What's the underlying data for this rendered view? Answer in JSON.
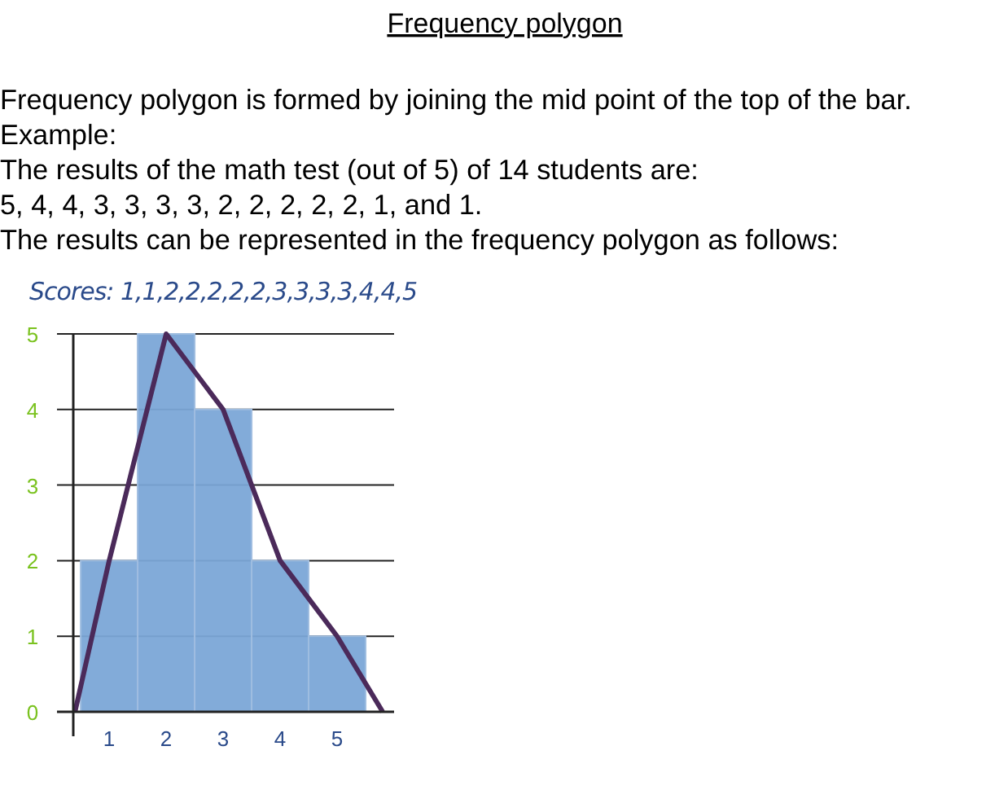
{
  "chart_data": {
    "type": "histogram",
    "title": "Frequency polygon",
    "annotations": [
      "Frequency polygon is formed by joining the mid point of the top of the bar.",
      "Example:",
      "The results of the math test (out of 5) of 14 students are:",
      "5, 4, 4, 3, 3, 3, 3, 2, 2, 2, 2, 2, 1, and 1.",
      "The results can be represented in the frequency polygon as follows:",
      "Scores: 1,1,2,2,2,2,2,3,3,3,3,4,4,5"
    ],
    "series": [
      {
        "bins": [
          0.5,
          1.5,
          2.5,
          3.5,
          4.5,
          5.5
        ],
        "values": [
          2,
          5,
          4,
          2,
          1
        ],
        "color": "#7ba7d7"
      },
      {
        "type": "line",
        "x": [
          0.4,
          1,
          2,
          3,
          4,
          5,
          5.8
        ],
        "values": [
          0,
          2,
          5,
          4,
          2,
          1,
          0
        ],
        "color": "#4b2a5a"
      }
    ],
    "xlim": [
      0.37,
      6
    ],
    "xticks": [
      1,
      2,
      3,
      4,
      5
    ],
    "ylim": [
      0,
      5
    ],
    "yticks": [
      0,
      1,
      2,
      3,
      4,
      5
    ],
    "grid": "y",
    "marker": "none",
    "line_style": "solid"
  }
}
